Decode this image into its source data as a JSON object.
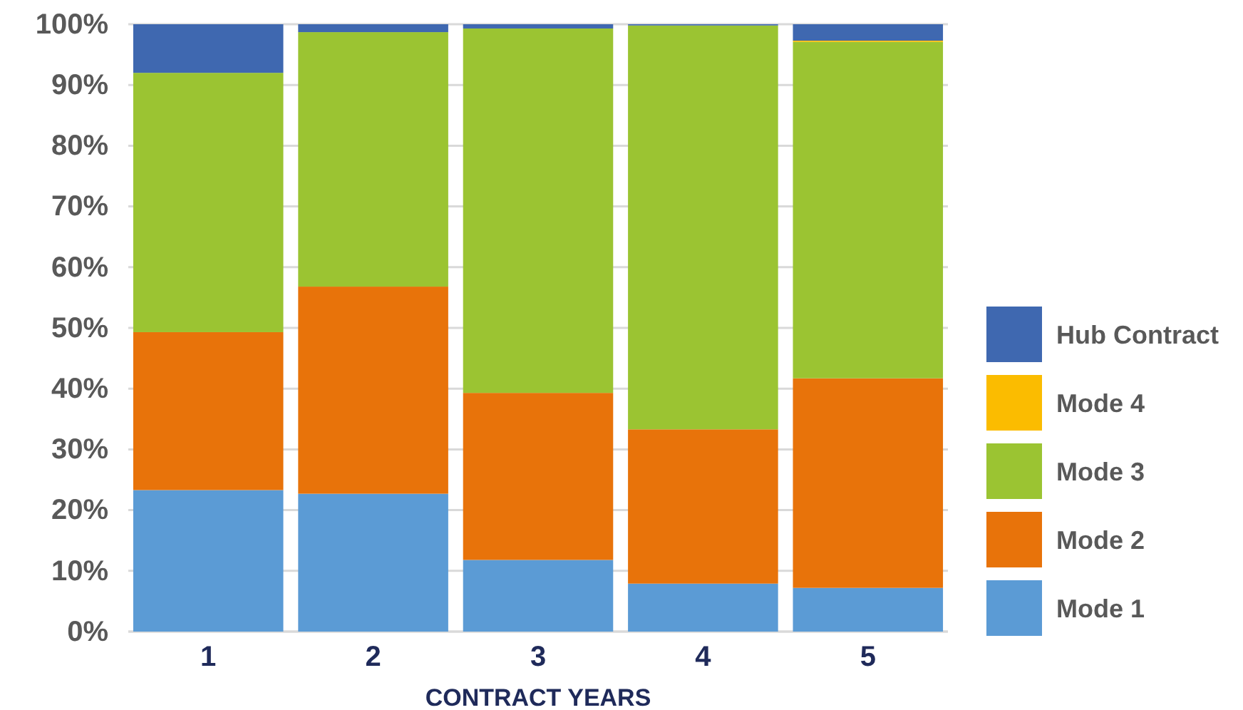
{
  "chart_data": {
    "type": "bar",
    "stacked": true,
    "xlabel": "CONTRACT YEARS",
    "categories": [
      "1",
      "2",
      "3",
      "4",
      "5"
    ],
    "series": [
      {
        "name": "Mode 1",
        "color": "#5b9bd5",
        "values": [
          23.3,
          22.7,
          11.8,
          7.9,
          7.2
        ]
      },
      {
        "name": "Mode 2",
        "color": "#e8730a",
        "values": [
          26.0,
          34.1,
          27.5,
          25.4,
          34.5
        ]
      },
      {
        "name": "Mode 3",
        "color": "#9bc432",
        "values": [
          42.7,
          41.9,
          60.0,
          66.5,
          55.4
        ]
      },
      {
        "name": "Mode 4",
        "color": "#fbbc00",
        "values": [
          0,
          0,
          0,
          0,
          0.2
        ]
      },
      {
        "name": "Hub Contract",
        "color": "#3f68b0",
        "values": [
          8.0,
          1.3,
          0.7,
          0.2,
          2.7
        ]
      }
    ],
    "ylim": [
      0,
      100
    ],
    "yticks": [
      {
        "value": 0,
        "label": "0%"
      },
      {
        "value": 10,
        "label": "10%"
      },
      {
        "value": 20,
        "label": "20%"
      },
      {
        "value": 30,
        "label": "30%"
      },
      {
        "value": 40,
        "label": "40%"
      },
      {
        "value": 50,
        "label": "50%"
      },
      {
        "value": 60,
        "label": "60%"
      },
      {
        "value": 70,
        "label": "70%"
      },
      {
        "value": 80,
        "label": "80%"
      },
      {
        "value": 90,
        "label": "90%"
      },
      {
        "value": 100,
        "label": "100%"
      }
    ],
    "grid": "y",
    "legend": "right"
  }
}
